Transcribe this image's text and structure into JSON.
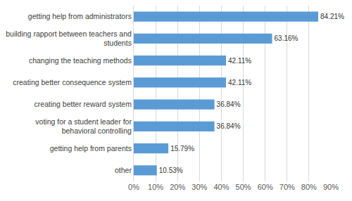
{
  "chart_data": {
    "type": "bar",
    "orientation": "horizontal",
    "categories": [
      "getting help from administrators",
      "building rapport between teachers and students",
      "changing the teaching methods",
      "creating better consequence system",
      "creating better reward system",
      "voting for a student leader for behavioral controlling",
      "getting help from parents",
      "other"
    ],
    "values": [
      84.21,
      63.16,
      42.11,
      42.11,
      36.84,
      36.84,
      15.79,
      10.53
    ],
    "value_labels": [
      "84.21%",
      "63.16%",
      "42.11%",
      "42.11%",
      "36.84%",
      "36.84%",
      "15.79%",
      "10.53%"
    ],
    "data_labels": true,
    "color": "#5b9bd5",
    "xlim": [
      0,
      90
    ],
    "xticks": [
      {
        "value": 0,
        "label": "0%"
      },
      {
        "value": 10,
        "label": "10%"
      },
      {
        "value": 20,
        "label": "20%"
      },
      {
        "value": 30,
        "label": "30%"
      },
      {
        "value": 40,
        "label": "40%"
      },
      {
        "value": 50,
        "label": "50%"
      },
      {
        "value": 60,
        "label": "60%"
      },
      {
        "value": 70,
        "label": "70%"
      },
      {
        "value": 80,
        "label": "80%"
      },
      {
        "value": 90,
        "label": "90%"
      }
    ],
    "grid": true
  }
}
